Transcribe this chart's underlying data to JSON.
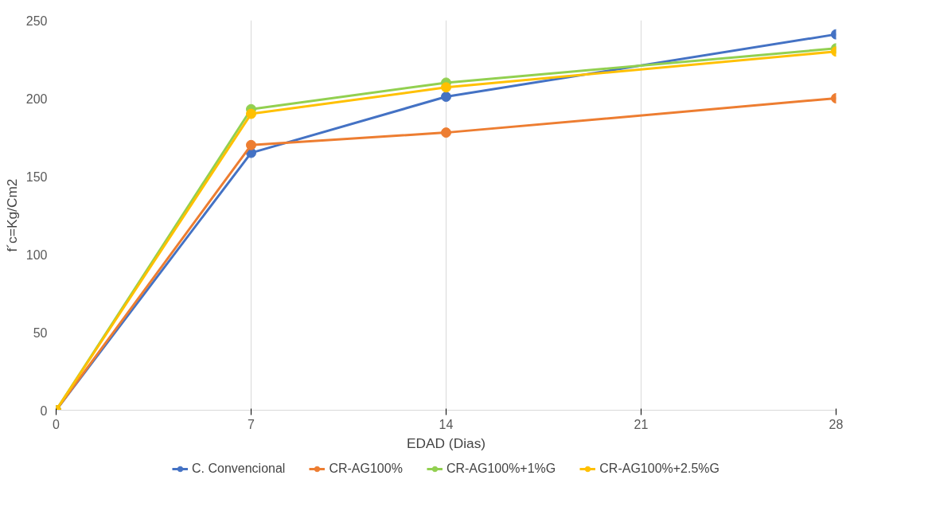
{
  "chart_data": {
    "type": "line",
    "xlabel": "EDAD (Dias)",
    "ylabel": "f´c=Kg/Cm2",
    "x": [
      0,
      7,
      14,
      28
    ],
    "xlim": [
      0,
      28
    ],
    "xticks": [
      0,
      7,
      14,
      21,
      28
    ],
    "ylim": [
      0,
      250
    ],
    "yticks": [
      0,
      50,
      100,
      150,
      200,
      250
    ],
    "grid": "x",
    "legend": "bottom",
    "marker": "circle",
    "line_style": "solid",
    "series": [
      {
        "name": "C. Convencional",
        "color": "#4472c4",
        "values": [
          0,
          165,
          201,
          241
        ]
      },
      {
        "name": "CR-AG100%",
        "color": "#ed7d31",
        "values": [
          0,
          170,
          178,
          200
        ]
      },
      {
        "name": "CR-AG100%+1%G",
        "color": "#92d050",
        "values": [
          0,
          193,
          210,
          232
        ]
      },
      {
        "name": "CR-AG100%+2.5%G",
        "color": "#ffc000",
        "values": [
          0,
          190,
          207,
          230
        ]
      }
    ]
  }
}
